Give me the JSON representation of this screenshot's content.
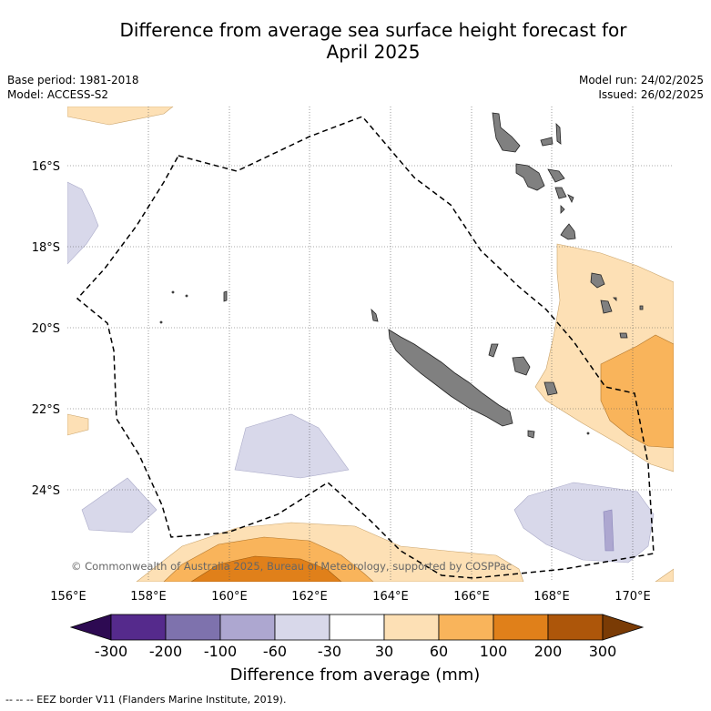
{
  "title": {
    "line1": "Difference from average sea surface height forecast for",
    "line2": "April 2025"
  },
  "meta_left": {
    "base_period": "Base period: 1981-2018",
    "model": "Model: ACCESS-S2"
  },
  "meta_right": {
    "model_run": "Model run: 24/02/2025",
    "issued": "Issued: 26/02/2025"
  },
  "map": {
    "lat_labels": [
      "16°S",
      "18°S",
      "20°S",
      "22°S",
      "24°S"
    ],
    "lon_labels": [
      "156°E",
      "158°E",
      "160°E",
      "162°E",
      "164°E",
      "166°E",
      "168°E",
      "170°E"
    ],
    "copyright": "© Commonwealth of Australia 2025, Bureau of Meteorology, supported by COSPPac",
    "land_color": "#808080"
  },
  "colorbar": {
    "ticks": [
      "-300",
      "-200",
      "-100",
      "-60",
      "-30",
      "30",
      "60",
      "100",
      "200",
      "300"
    ],
    "label": "Difference from average (mm)",
    "colors": [
      "#552a8c",
      "#7e72ad",
      "#ada7d0",
      "#d8d8ea",
      "#ffffff",
      "#fde0b5",
      "#f9b45b",
      "#e0801a",
      "#ad560a"
    ],
    "low_extend_color": "#2d0a52",
    "high_extend_color": "#7a3b05"
  },
  "footer": {
    "legend": "-- -- -- EEZ border V11 (Flanders Marine Institute, 2019)."
  }
}
